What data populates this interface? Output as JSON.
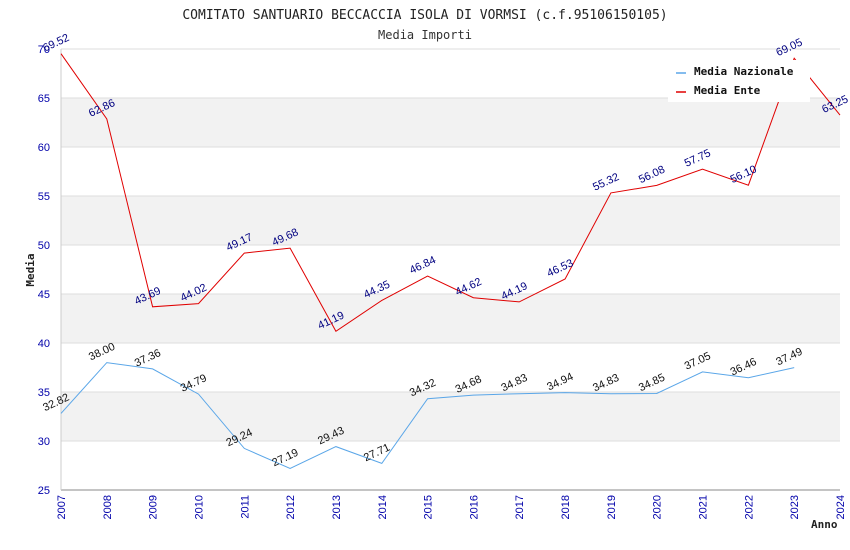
{
  "chart_data": {
    "type": "line",
    "title": "COMITATO SANTUARIO BECCACCIA ISOLA DI VORMSI (c.f.95106150105)",
    "subtitle": "Media Importi",
    "xlabel": "Anno",
    "ylabel": "Media",
    "x": [
      "2007",
      "2008",
      "2009",
      "2010",
      "2011",
      "2012",
      "2013",
      "2014",
      "2015",
      "2016",
      "2017",
      "2018",
      "2019",
      "2020",
      "2021",
      "2022",
      "2023",
      "2024"
    ],
    "ylim": [
      25,
      70
    ],
    "yticks": [
      "25",
      "30",
      "35",
      "40",
      "45",
      "50",
      "55",
      "60",
      "65",
      "70"
    ],
    "grid": "horizontal alternating bands",
    "legend_position": "top-right",
    "colors": {
      "axis_ticks": "#0000aa",
      "band": "#f2f2f2",
      "gridline": "#dddddd",
      "ente_label": "#000080",
      "naz_label": "#111111"
    },
    "series": [
      {
        "name": "Media Nazionale",
        "color": "#5aa6e8",
        "values": [
          32.82,
          38.0,
          37.36,
          34.79,
          29.24,
          27.19,
          29.43,
          27.71,
          34.32,
          34.68,
          34.83,
          34.94,
          34.83,
          34.85,
          37.05,
          36.46,
          37.49,
          null
        ],
        "labels": [
          "32.82",
          "38.00",
          "37.36",
          "34.79",
          "29.24",
          "27.19",
          "29.43",
          "27.71",
          "34.32",
          "34.68",
          "34.83",
          "34.94",
          "34.83",
          "34.85",
          "37.05",
          "36.46",
          "37.49",
          ""
        ]
      },
      {
        "name": "Media Ente",
        "color": "#e00000",
        "values": [
          69.52,
          62.86,
          43.69,
          44.02,
          49.17,
          49.68,
          41.19,
          44.35,
          46.84,
          44.62,
          44.19,
          46.53,
          55.32,
          56.08,
          57.75,
          56.1,
          69.05,
          63.25
        ],
        "labels": [
          "69.52",
          "62.86",
          "43.69",
          "44.02",
          "49.17",
          "49.68",
          "41.19",
          "44.35",
          "46.84",
          "44.62",
          "44.19",
          "46.53",
          "55.32",
          "56.08",
          "57.75",
          "56.10",
          "69.05",
          "63.25"
        ]
      }
    ]
  }
}
